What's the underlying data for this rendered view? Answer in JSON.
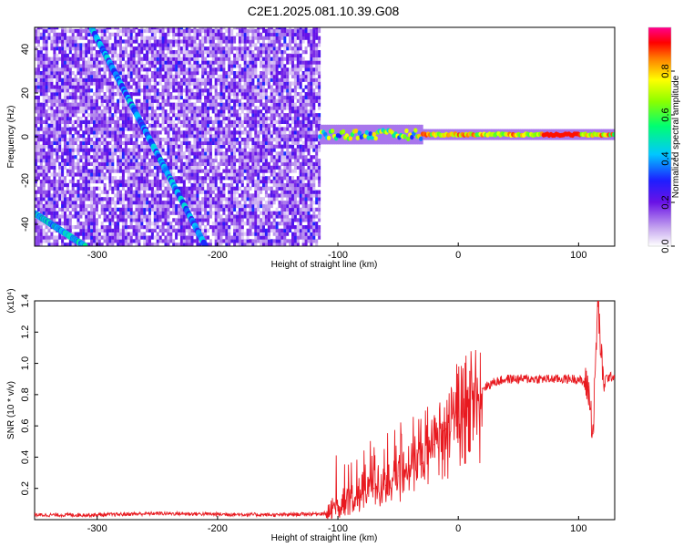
{
  "title": "C2E1.2025.081.10.39.G08",
  "chart_data": [
    {
      "type": "heatmap",
      "xlabel": "Height of straight line (km)",
      "ylabel": "Frequency (Hz)",
      "xlim": [
        -352,
        130
      ],
      "ylim": [
        -50,
        50
      ],
      "xticks": [
        -300,
        -200,
        -100,
        0,
        100
      ],
      "yticks": [
        -40,
        -20,
        0,
        20,
        40
      ],
      "colorbar": {
        "label": "Normalized spectral amplitude",
        "range": [
          0.0,
          1.0
        ],
        "ticks": [
          0.0,
          0.2,
          0.4,
          0.6,
          0.8
        ],
        "colormap": "rainbow (white-violet-blue-cyan-green-yellow-red-magenta)"
      },
      "features": [
        {
          "name": "noise_region",
          "x_range": [
            -352,
            -115
          ],
          "freq_range": [
            -50,
            50
          ],
          "amplitude": 0.15
        },
        {
          "name": "diagonal_track_1",
          "from": [
            -305,
            50
          ],
          "to": [
            -210,
            -50
          ],
          "amplitude": 0.35
        },
        {
          "name": "diagonal_track_2",
          "from": [
            -352,
            -35
          ],
          "to": [
            -310,
            -50
          ],
          "amplitude": 0.4
        },
        {
          "name": "carrier_line",
          "x_range": [
            -115,
            130
          ],
          "freq": 1,
          "amplitude": 0.8
        }
      ],
      "grid": false
    },
    {
      "type": "line",
      "xlabel": "Height of straight line (km)",
      "ylabel": "SNR (10 * v/v)",
      "y_scale_label": "(x10⁴)",
      "xlim": [
        -352,
        130
      ],
      "ylim": [
        0,
        1.4
      ],
      "xticks": [
        -300,
        -200,
        -100,
        0,
        100
      ],
      "yticks": [
        0.2,
        0.4,
        0.6,
        0.8,
        1.0,
        1.2,
        1.4
      ],
      "color": "#e8191f",
      "series": [
        {
          "x": [
            -352,
            -300,
            -250,
            -200,
            -150,
            -110,
            -100,
            -90,
            -80,
            -70,
            -60,
            -50,
            -40,
            -30,
            -20,
            -10,
            0,
            10,
            20,
            30,
            40,
            60,
            80,
            100,
            108,
            112,
            116,
            120,
            130
          ],
          "y": [
            0.03,
            0.03,
            0.04,
            0.035,
            0.03,
            0.04,
            0.08,
            0.12,
            0.16,
            0.2,
            0.22,
            0.28,
            0.32,
            0.36,
            0.48,
            0.58,
            0.66,
            0.76,
            0.84,
            0.88,
            0.9,
            0.9,
            0.9,
            0.9,
            0.85,
            0.55,
            1.4,
            0.9,
            0.92
          ]
        }
      ],
      "grid": false
    }
  ]
}
